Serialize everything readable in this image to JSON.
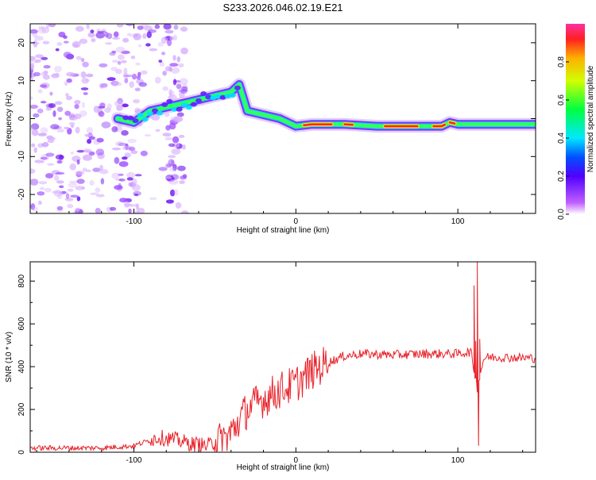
{
  "title": "S233.2026.046.02.19.E21",
  "chart_data": [
    {
      "type": "heatmap",
      "name": "spectrogram",
      "xlabel": "Height of straight line (km)",
      "ylabel": "Frequency (Hz)",
      "xlim": [
        -164,
        148
      ],
      "ylim": [
        -25,
        25
      ],
      "x_ticks": [
        -100,
        0,
        100
      ],
      "x_tick_labels": [
        "-100",
        "0",
        "100"
      ],
      "y_ticks": [
        20,
        10,
        0,
        -10,
        -20
      ],
      "y_tick_labels": [
        "20",
        "10",
        "0",
        "-10",
        "-20"
      ],
      "ridge": {
        "x": [
          -110,
          -100,
          -90,
          -80,
          -70,
          -60,
          -50,
          -40,
          -35,
          -30,
          -20,
          -10,
          0,
          10,
          30,
          50,
          80,
          90,
          95,
          100,
          110,
          120,
          140,
          148
        ],
        "y": [
          0,
          -1,
          2,
          3,
          4,
          5,
          6,
          7,
          9,
          2,
          1,
          0,
          -2,
          -1.5,
          -1.5,
          -2,
          -2,
          -2,
          -1,
          -1.5,
          -1.5,
          -1.5,
          -1.5,
          -1.5
        ]
      },
      "colorbar": {
        "label": "Normalized spectral amplitude",
        "range": [
          0,
          1
        ],
        "ticks": [
          0.0,
          0.2,
          0.4,
          0.6,
          0.8
        ],
        "tick_labels": [
          "0.0",
          "0.2",
          "0.4",
          "0.6",
          "0.8"
        ]
      }
    },
    {
      "type": "line",
      "name": "snr",
      "xlabel": "Height of straight line (km)",
      "ylabel": "SNR (10 * v/v)",
      "xlim": [
        -164,
        148
      ],
      "ylim": [
        0,
        890
      ],
      "x_ticks": [
        -100,
        0,
        100
      ],
      "x_tick_labels": [
        "-100",
        "0",
        "100"
      ],
      "y_ticks": [
        0,
        200,
        400,
        600,
        800
      ],
      "y_tick_labels": [
        "0",
        "200",
        "400",
        "600",
        "800"
      ],
      "color": "#e8222a",
      "trend": {
        "x": [
          -164,
          -120,
          -100,
          -85,
          -75,
          -65,
          -55,
          -45,
          -40,
          -35,
          -30,
          -20,
          -10,
          0,
          10,
          20,
          30,
          40,
          60,
          80,
          100,
          108,
          112,
          116,
          120,
          148
        ],
        "y": [
          20,
          20,
          30,
          70,
          60,
          40,
          30,
          60,
          90,
          150,
          200,
          250,
          290,
          320,
          380,
          420,
          450,
          460,
          455,
          460,
          460,
          470,
          300,
          440,
          445,
          440
        ]
      },
      "spikes": [
        {
          "x": 110,
          "y": 780
        },
        {
          "x": 111,
          "y": 520
        },
        {
          "x": 112,
          "y": 890
        },
        {
          "x": 112.8,
          "y": 30
        },
        {
          "x": 113.5,
          "y": 530
        }
      ]
    }
  ]
}
